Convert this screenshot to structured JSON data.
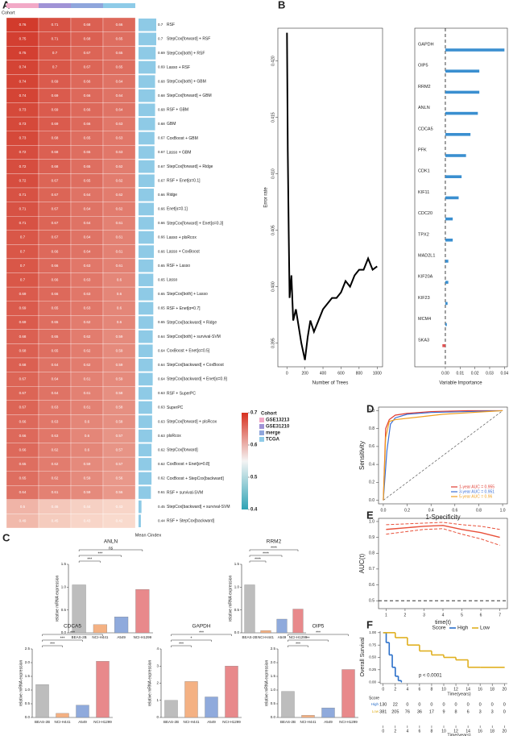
{
  "panel_labels": [
    "A",
    "B",
    "C",
    "D",
    "E",
    "F"
  ],
  "heatmap": {
    "cohort_label": "Cohort",
    "mean_label": "Mean Cindex",
    "cohorts": [
      {
        "name": "GSE13213",
        "color": "#f2a9c7"
      },
      {
        "name": "GSE31210",
        "color": "#a093d6"
      },
      {
        "name": "merge",
        "color": "#8fa6dc"
      },
      {
        "name": "TCGA",
        "color": "#8ecbe8"
      }
    ],
    "colorbar_lim": [
      0.4,
      0.7
    ],
    "colorbar_ticks": [
      0.4,
      0.5,
      0.6,
      0.7
    ],
    "rows": [
      {
        "name": "RSF",
        "mean": 0.7,
        "values": [
          0.76,
          0.71,
          0.68,
          0.66
        ]
      },
      {
        "name": "StepCox[forward] + RSF",
        "mean": 0.7,
        "values": [
          0.75,
          0.71,
          0.68,
          0.65
        ]
      },
      {
        "name": "StepCox[both] + RSF",
        "mean": 0.69,
        "values": [
          0.75,
          0.7,
          0.67,
          0.65
        ]
      },
      {
        "name": "Lasso + RSF",
        "mean": 0.69,
        "values": [
          0.74,
          0.7,
          0.67,
          0.65
        ]
      },
      {
        "name": "StepCox[both] + GBM",
        "mean": 0.68,
        "values": [
          0.74,
          0.69,
          0.66,
          0.64
        ]
      },
      {
        "name": "StepCox[forward] + GBM",
        "mean": 0.68,
        "values": [
          0.74,
          0.69,
          0.66,
          0.64
        ]
      },
      {
        "name": "RSF + GBM",
        "mean": 0.68,
        "values": [
          0.73,
          0.69,
          0.66,
          0.64
        ]
      },
      {
        "name": "GBM",
        "mean": 0.68,
        "values": [
          0.73,
          0.69,
          0.66,
          0.63
        ]
      },
      {
        "name": "CoxBoost + GBM",
        "mean": 0.67,
        "values": [
          0.73,
          0.68,
          0.65,
          0.63
        ]
      },
      {
        "name": "Lasso + GBM",
        "mean": 0.67,
        "values": [
          0.72,
          0.68,
          0.65,
          0.63
        ]
      },
      {
        "name": "StepCox[forward] + Ridge",
        "mean": 0.67,
        "values": [
          0.72,
          0.68,
          0.65,
          0.62
        ]
      },
      {
        "name": "RSF + Enet[α=0.1]",
        "mean": 0.67,
        "values": [
          0.72,
          0.67,
          0.65,
          0.62
        ]
      },
      {
        "name": "Ridge",
        "mean": 0.66,
        "values": [
          0.71,
          0.67,
          0.64,
          0.62
        ]
      },
      {
        "name": "Enet[α=0.1]",
        "mean": 0.66,
        "values": [
          0.71,
          0.67,
          0.64,
          0.62
        ]
      },
      {
        "name": "StepCox[forward] + Enet[α=0.3]",
        "mean": 0.66,
        "values": [
          0.71,
          0.67,
          0.64,
          0.61
        ]
      },
      {
        "name": "Lasso + plsRcox",
        "mean": 0.66,
        "values": [
          0.7,
          0.67,
          0.64,
          0.61
        ]
      },
      {
        "name": "Lasso + CoxBoost",
        "mean": 0.66,
        "values": [
          0.7,
          0.66,
          0.64,
          0.61
        ]
      },
      {
        "name": "RSF + Lasso",
        "mean": 0.65,
        "values": [
          0.7,
          0.66,
          0.63,
          0.61
        ]
      },
      {
        "name": "Lasso",
        "mean": 0.65,
        "values": [
          0.7,
          0.66,
          0.63,
          0.6
        ]
      },
      {
        "name": "StepCox[both] + Lasso",
        "mean": 0.65,
        "values": [
          0.69,
          0.66,
          0.63,
          0.6
        ]
      },
      {
        "name": "RSF + Enet[α=0.7]",
        "mean": 0.65,
        "values": [
          0.69,
          0.65,
          0.63,
          0.6
        ]
      },
      {
        "name": "StepCox[backward] + Ridge",
        "mean": 0.65,
        "values": [
          0.69,
          0.65,
          0.62,
          0.6
        ]
      },
      {
        "name": "StepCox[both] + survival-SVM",
        "mean": 0.64,
        "values": [
          0.68,
          0.65,
          0.62,
          0.59
        ]
      },
      {
        "name": "CoxBoost + Enet[α=0.5]",
        "mean": 0.64,
        "values": [
          0.68,
          0.65,
          0.62,
          0.59
        ]
      },
      {
        "name": "StepCox[backward] + CoxBoost",
        "mean": 0.64,
        "values": [
          0.68,
          0.64,
          0.62,
          0.59
        ]
      },
      {
        "name": "StepCox[backward] + Enet[α=0.9]",
        "mean": 0.64,
        "values": [
          0.67,
          0.64,
          0.61,
          0.59
        ]
      },
      {
        "name": "RSF + SuperPC",
        "mean": 0.63,
        "values": [
          0.67,
          0.64,
          0.61,
          0.58
        ]
      },
      {
        "name": "SuperPC",
        "mean": 0.63,
        "values": [
          0.67,
          0.63,
          0.61,
          0.58
        ]
      },
      {
        "name": "StepCox[forward] + plsRcox",
        "mean": 0.63,
        "values": [
          0.66,
          0.63,
          0.6,
          0.58
        ]
      },
      {
        "name": "plsRcox",
        "mean": 0.63,
        "values": [
          0.66,
          0.63,
          0.6,
          0.57
        ]
      },
      {
        "name": "StepCox[forward]",
        "mean": 0.62,
        "values": [
          0.66,
          0.62,
          0.6,
          0.57
        ]
      },
      {
        "name": "CoxBoost + Enet[α=0.8]",
        "mean": 0.62,
        "values": [
          0.65,
          0.62,
          0.59,
          0.57
        ]
      },
      {
        "name": "CoxBoost + StepCox[backward]",
        "mean": 0.62,
        "values": [
          0.65,
          0.62,
          0.59,
          0.56
        ]
      },
      {
        "name": "RSF + survival-SVM",
        "mean": 0.61,
        "values": [
          0.64,
          0.61,
          0.59,
          0.56
        ]
      },
      {
        "name": "StepCox[backward] + survival-SVM",
        "mean": 0.45,
        "values": [
          0.5,
          0.46,
          0.44,
          0.43
        ]
      },
      {
        "name": "RSF + StepCox[backward]",
        "mean": 0.44,
        "values": [
          0.49,
          0.45,
          0.43,
          0.42
        ]
      }
    ]
  },
  "error_rate": {
    "type": "line",
    "xlabel": "Number of Trees",
    "ylabel": "Error rate",
    "x": [
      1,
      5,
      10,
      20,
      30,
      50,
      70,
      100,
      130,
      160,
      200,
      230,
      260,
      300,
      350,
      400,
      450,
      500,
      550,
      600,
      650,
      700,
      750,
      800,
      850,
      900,
      950,
      1000
    ],
    "values": [
      0.4225,
      0.418,
      0.412,
      0.405,
      0.399,
      0.401,
      0.397,
      0.398,
      0.3965,
      0.395,
      0.3935,
      0.3955,
      0.397,
      0.396,
      0.397,
      0.398,
      0.3985,
      0.399,
      0.399,
      0.3995,
      0.4005,
      0.4,
      0.401,
      0.4015,
      0.4015,
      0.4025,
      0.4015,
      0.4018
    ],
    "color": "#000000",
    "xlim": [
      -100,
      1060
    ],
    "xticks": [
      0,
      200,
      400,
      600,
      800,
      1000
    ],
    "ylim": [
      0.3929,
      0.4229
    ],
    "yticks": [
      {
        "value": 0.395,
        "label": "0.395"
      },
      {
        "value": 0.4,
        "label": "0.400"
      },
      {
        "value": 0.405,
        "label": "0.405"
      },
      {
        "value": 0.41,
        "label": "0.410"
      },
      {
        "value": 0.415,
        "label": "0.415"
      },
      {
        "value": 0.42,
        "label": "0.420"
      }
    ]
  },
  "importance": {
    "type": "lollipop",
    "xlabel": "Variable Importance",
    "categories": [
      "GAPDH",
      "OIP5",
      "RRM2",
      "ANLN",
      "CDCA5",
      "PFK",
      "CDK1",
      "KIF11",
      "CDC20",
      "TPX2",
      "MAD2L1",
      "KIF20A",
      "KIF23",
      "MCM4",
      "SKA3"
    ],
    "values": [
      0.04,
      0.023,
      0.023,
      0.022,
      0.017,
      0.014,
      0.011,
      0.009,
      0.005,
      0.005,
      0.002,
      0.002,
      0.0015,
      0.001,
      -0.002
    ],
    "color": "#3a8fd0",
    "negative_color": "#e05252",
    "xlim": [
      -0.0207,
      0.042
    ],
    "xticks": [
      {
        "value": 0,
        "label": "0.00"
      },
      {
        "value": 0.01,
        "label": "0.01"
      },
      {
        "value": 0.02,
        "label": "0.02"
      },
      {
        "value": 0.03,
        "label": "0.03"
      },
      {
        "value": 0.04,
        "label": "0.04"
      }
    ]
  },
  "qpcr": {
    "type": "bar",
    "ylabel": "relative mRNA expression",
    "categories": [
      "BEAS-2B",
      "NCI-H441",
      "A549",
      "NCI-H1299"
    ],
    "colors": [
      "#bdbdbd",
      "#f4b183",
      "#8faadc",
      "#e8898b"
    ],
    "charts": [
      {
        "title": "ANLN",
        "values": [
          1.05,
          0.18,
          0.35,
          0.95
        ],
        "ylim": [
          0,
          1.5
        ],
        "yticks": [
          {
            "value": 0,
            "label": "0.0"
          },
          0.5,
          {
            "value": 1,
            "label": "1.0"
          },
          1.5
        ],
        "sig": [
          null,
          "***",
          "***",
          "ns"
        ]
      },
      {
        "title": "RRM2",
        "values": [
          1.05,
          0.05,
          0.3,
          0.52
        ],
        "ylim": [
          0,
          1.5
        ],
        "yticks": [
          {
            "value": 0,
            "label": "0.0"
          },
          0.5,
          {
            "value": 1,
            "label": "1.0"
          },
          1.5
        ],
        "sig": [
          null,
          "****",
          "****",
          "****"
        ]
      },
      {
        "title": "CDCA5",
        "values": [
          1.2,
          0.15,
          0.45,
          2.05
        ],
        "ylim": [
          0,
          2.5
        ],
        "yticks": [
          {
            "value": 0,
            "label": "0.0"
          },
          0.5,
          {
            "value": 1,
            "label": "1.0"
          },
          1.5,
          {
            "value": 2,
            "label": "2.0"
          },
          2.5
        ],
        "sig": [
          null,
          "***",
          "***",
          "***"
        ]
      },
      {
        "title": "GAPDH",
        "values": [
          1.0,
          2.1,
          1.2,
          3.0
        ],
        "ylim": [
          0,
          4
        ],
        "yticks": [
          0,
          1,
          2,
          3,
          4
        ],
        "sig": [
          null,
          "***",
          "*",
          "***"
        ]
      },
      {
        "title": "OIP5",
        "values": [
          0.95,
          0.08,
          0.35,
          1.75
        ],
        "ylim": [
          0,
          2.5
        ],
        "yticks": [
          {
            "value": 0,
            "label": "0.0"
          },
          0.5,
          {
            "value": 1,
            "label": "1.0"
          },
          1.5,
          {
            "value": 2,
            "label": "2.0"
          },
          2.5
        ],
        "sig": [
          null,
          "***",
          "**",
          "***"
        ]
      }
    ]
  },
  "roc": {
    "type": "line",
    "xlabel": "1-Specificity",
    "ylabel": "Sensitivity",
    "xlim": [
      -0.04,
      1.04
    ],
    "ylim": [
      -0.04,
      1.04
    ],
    "xticks": [
      {
        "value": 0,
        "label": "0.0"
      },
      0.2,
      0.4,
      0.6,
      0.8,
      {
        "value": 1,
        "label": "1.0"
      }
    ],
    "yticks": [
      {
        "value": 0,
        "label": "0.0"
      },
      0.2,
      0.4,
      0.6,
      0.8,
      {
        "value": 1,
        "label": "1.0"
      }
    ],
    "series": [
      {
        "name": "1-year AUC = 0.955",
        "color": "#e03c31",
        "x": [
          0,
          0.02,
          0.05,
          0.1,
          0.2,
          0.4,
          0.7,
          1
        ],
        "values": [
          0,
          0.8,
          0.9,
          0.95,
          0.97,
          0.99,
          1,
          1
        ]
      },
      {
        "name": "3-year AUC = 0.951",
        "color": "#3b6fd6",
        "x": [
          0,
          0.03,
          0.06,
          0.1,
          0.2,
          0.4,
          1
        ],
        "values": [
          0,
          0.55,
          0.85,
          0.92,
          0.96,
          0.98,
          1
        ]
      },
      {
        "name": "5-year AUC = 0.96",
        "color": "#f0a020",
        "x": [
          0,
          0.02,
          0.05,
          0.1,
          0.3,
          0.5,
          1
        ],
        "values": [
          0,
          0.7,
          0.88,
          0.9,
          0.93,
          0.96,
          1
        ]
      }
    ]
  },
  "auc_time": {
    "type": "line",
    "xlabel": "time(t)",
    "ylabel": "AUC(t)",
    "color": "#e8503a",
    "x": [
      1,
      2,
      3,
      4,
      5,
      6,
      7
    ],
    "values": [
      0.95,
      0.96,
      0.97,
      0.975,
      0.95,
      0.93,
      0.9
    ],
    "lower": [
      0.92,
      0.935,
      0.95,
      0.955,
      0.92,
      0.89,
      0.85
    ],
    "upper": [
      0.98,
      0.985,
      0.99,
      0.995,
      0.98,
      0.97,
      0.95
    ],
    "reference": 0.5,
    "xlim": [
      0.6,
      7.4
    ],
    "xticks": [
      1,
      2,
      3,
      4,
      5,
      6,
      7
    ],
    "ylim": [
      0.45,
      1.02
    ],
    "yticks": [
      0.5,
      0.6,
      0.7,
      0.8,
      0.9,
      {
        "value": 1,
        "label": "1.0"
      }
    ]
  },
  "survival": {
    "type": "km",
    "xlabel": "Time(years)",
    "ylabel": "Overall Survival",
    "legend_title": "Score",
    "pvalue": "p < 0.0001",
    "xlim": [
      -0.5,
      20.5
    ],
    "xticks": [
      0,
      2,
      4,
      6,
      8,
      10,
      12,
      14,
      16,
      18,
      20
    ],
    "ylim": [
      -0.03,
      1.03
    ],
    "yticks": [
      {
        "value": 0,
        "label": "0.00"
      },
      0.25,
      {
        "value": 0.5,
        "label": "0.50"
      },
      0.75,
      {
        "value": 1,
        "label": "1.00"
      }
    ],
    "series": [
      {
        "name": "High",
        "color": "#2a6fc9",
        "x": [
          0,
          0.5,
          1,
          1.5,
          2,
          2.5,
          3
        ],
        "values": [
          1,
          0.8,
          0.55,
          0.3,
          0.12,
          0.03,
          0
        ],
        "at_risk": [
          130,
          22,
          0,
          0,
          0,
          0,
          0,
          0,
          0,
          0,
          0
        ]
      },
      {
        "name": "Low",
        "color": "#e0b020",
        "x": [
          0,
          2,
          4,
          6,
          8,
          10,
          12,
          14,
          16,
          20
        ],
        "values": [
          1,
          0.9,
          0.75,
          0.63,
          0.55,
          0.5,
          0.45,
          0.3,
          0.3,
          0.3
        ],
        "at_risk": [
          381,
          205,
          76,
          36,
          17,
          9,
          8,
          6,
          3,
          3,
          0
        ]
      }
    ]
  }
}
